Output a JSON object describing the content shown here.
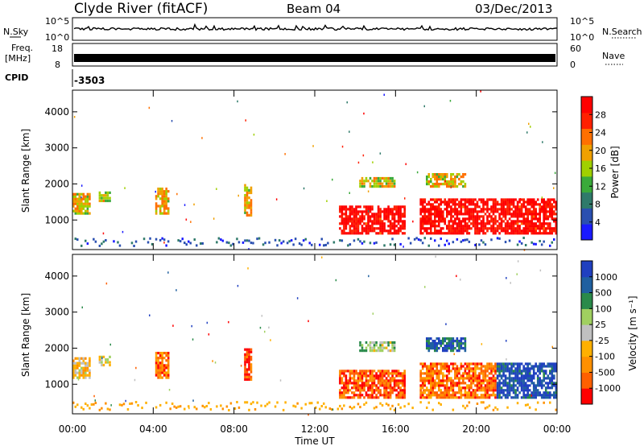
{
  "header": {
    "station": "Clyde River (fitACF)",
    "beam": "Beam 04",
    "date": "03/Dec/2013"
  },
  "summary": {
    "nsky_label": "N.Sky",
    "nsky_ticks": [
      "10^5",
      "10^0"
    ],
    "nsearch_label": "N.Search",
    "nsearch_ticks": [
      "10^5",
      "10^0"
    ],
    "freq_label_1": "Freq.",
    "freq_label_2": "[MHz]",
    "freq_ticks": [
      "18",
      "8"
    ],
    "nave_label": "Nave",
    "nave_ticks": [
      "60",
      "0"
    ],
    "cpid_label": "CPID",
    "cpid_value": "-3503"
  },
  "colors": {
    "power_scale": [
      "#1a1aff",
      "#2a4fb0",
      "#2f7a6a",
      "#3aaa3a",
      "#a0d000",
      "#f0a000",
      "#ff7000",
      "#ff2000",
      "#ff0000"
    ],
    "velocity_scale": [
      "#ff0000",
      "#ff6000",
      "#ff9000",
      "#ffb000",
      "#c0c0c0",
      "#a0d060",
      "#2a8a4a",
      "#2060a0",
      "#2040c0"
    ]
  },
  "chart_data": [
    {
      "type": "heatmap",
      "panel": "power",
      "ylabel": "Slant Range [km]",
      "yticks": [
        "4000",
        "3000",
        "2000",
        "1000"
      ],
      "ylim": [
        180,
        4600
      ],
      "xlim": [
        0,
        24
      ],
      "colorbar_label": "Power [dB]",
      "colorbar_ticks": [
        "28",
        "24",
        "20",
        "16",
        "12",
        "8",
        "4"
      ],
      "colorbar_range": [
        0,
        32
      ],
      "echo_regions": [
        {
          "t0": 0.0,
          "t1": 0.9,
          "r0": 1150,
          "r1": 1750,
          "level": 0.6
        },
        {
          "t0": 1.3,
          "t1": 1.9,
          "r0": 1500,
          "r1": 1800,
          "level": 0.5
        },
        {
          "t0": 4.1,
          "t1": 4.8,
          "r0": 1150,
          "r1": 1900,
          "level": 0.6
        },
        {
          "t0": 8.5,
          "t1": 8.9,
          "r0": 1100,
          "r1": 2000,
          "level": 0.6
        },
        {
          "t0": 13.2,
          "t1": 16.5,
          "r0": 600,
          "r1": 1400,
          "level": 0.95
        },
        {
          "t0": 17.2,
          "t1": 24.0,
          "r0": 600,
          "r1": 1600,
          "level": 0.95
        },
        {
          "t0": 14.2,
          "t1": 16.0,
          "r0": 1900,
          "r1": 2200,
          "level": 0.55
        },
        {
          "t0": 17.5,
          "t1": 19.5,
          "r0": 1900,
          "r1": 2300,
          "level": 0.6
        }
      ]
    },
    {
      "type": "heatmap",
      "panel": "velocity",
      "ylabel": "Slant Range [km]",
      "xlabel": "Time UT",
      "yticks": [
        "4000",
        "3000",
        "2000",
        "1000"
      ],
      "ylim": [
        180,
        4600
      ],
      "xlim": [
        0,
        24
      ],
      "xticks": [
        "00:00",
        "04:00",
        "08:00",
        "12:00",
        "16:00",
        "20:00",
        "00:00"
      ],
      "colorbar_label": "Velocity [m s⁻¹]",
      "colorbar_ticks": [
        "1000",
        "500",
        "100",
        "25",
        "-25",
        "-100",
        "-500",
        "-1000"
      ],
      "echo_regions": [
        {
          "t0": 0.0,
          "t1": 0.9,
          "r0": 1150,
          "r1": 1750,
          "level": 0.45
        },
        {
          "t0": 1.3,
          "t1": 1.9,
          "r0": 1500,
          "r1": 1800,
          "level": 0.5
        },
        {
          "t0": 4.1,
          "t1": 4.8,
          "r0": 1150,
          "r1": 1900,
          "level": 0.2
        },
        {
          "t0": 8.5,
          "t1": 8.9,
          "r0": 1100,
          "r1": 2000,
          "level": 0.15
        },
        {
          "t0": 13.2,
          "t1": 16.5,
          "r0": 600,
          "r1": 1400,
          "level": 0.15
        },
        {
          "t0": 17.2,
          "t1": 21.0,
          "r0": 600,
          "r1": 1600,
          "level": 0.2
        },
        {
          "t0": 21.0,
          "t1": 24.0,
          "r0": 600,
          "r1": 1600,
          "level": 0.92
        },
        {
          "t0": 14.2,
          "t1": 16.0,
          "r0": 1900,
          "r1": 2200,
          "level": 0.6
        },
        {
          "t0": 17.5,
          "t1": 19.5,
          "r0": 1900,
          "r1": 2300,
          "level": 0.85
        }
      ]
    }
  ]
}
